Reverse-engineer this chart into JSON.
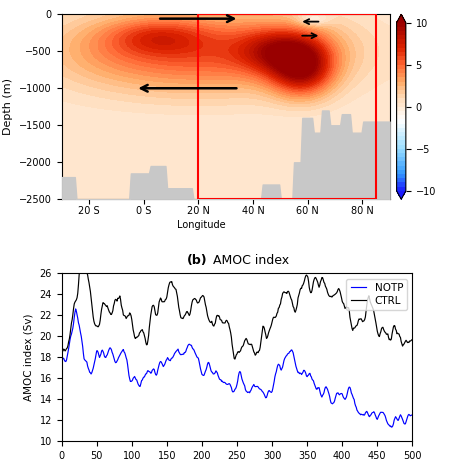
{
  "title_bottom": "(b) AMOC index",
  "colorbar_ticks": [
    -10,
    -5,
    0,
    5,
    10
  ],
  "depth_ticks": [
    0,
    -500,
    -1000,
    -1500,
    -2000,
    -2500
  ],
  "lat_ticks": [
    -20,
    0,
    20,
    40,
    60,
    80
  ],
  "lat_labels": [
    "20 S",
    "0 S",
    "20 N",
    "40 N",
    "60 N",
    "80 N"
  ],
  "xlabel_top": "Longitude",
  "ylabel_top": "Depth (m)",
  "ylabel_bottom": "AMOC index (Sv)",
  "amoc_xlim": [
    0,
    500
  ],
  "amoc_ylim": [
    10,
    26
  ],
  "amoc_yticks": [
    10,
    12,
    14,
    16,
    18,
    20,
    22,
    24,
    26
  ],
  "notp_color": "#0000ff",
  "ctrl_color": "#000000"
}
